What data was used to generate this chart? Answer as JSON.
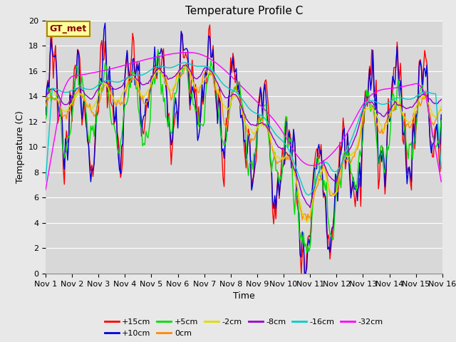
{
  "title": "Temperature Profile C",
  "xlabel": "Time",
  "ylabel": "Temperature (C)",
  "ylim": [
    0,
    20
  ],
  "x_tick_labels": [
    "Nov 1",
    "Nov 2",
    "Nov 3",
    "Nov 4",
    "Nov 5",
    "Nov 6",
    "Nov 7",
    "Nov 8",
    "Nov 9",
    "Nov 10",
    "Nov 11",
    "Nov 12",
    "Nov 13",
    "Nov 14",
    "Nov 15",
    "Nov 16"
  ],
  "gt_label": "GT_met",
  "series_labels": [
    "+15cm",
    "+10cm",
    "+5cm",
    "0cm",
    "-2cm",
    "-8cm",
    "-16cm",
    "-32cm"
  ],
  "series_colors": [
    "#ff0000",
    "#0000dd",
    "#00dd00",
    "#ff8800",
    "#dddd00",
    "#9900cc",
    "#00cccc",
    "#ff00ff"
  ],
  "bg_color": "#e8e8e8",
  "plot_bg_color": "#d8d8d8",
  "title_fontsize": 11,
  "axis_fontsize": 9,
  "tick_fontsize": 8,
  "legend_fontsize": 8,
  "gt_fontsize": 9,
  "linewidth": 1.0
}
